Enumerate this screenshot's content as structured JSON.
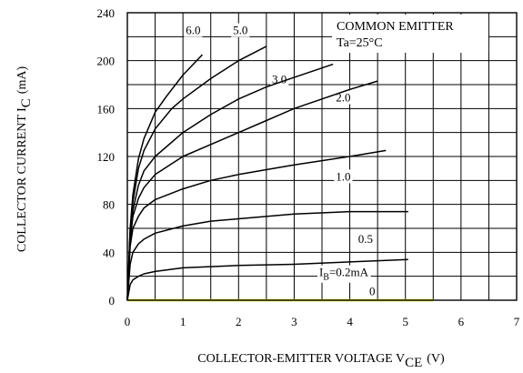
{
  "chart_data": {
    "type": "line",
    "title": "",
    "xlabel": "COLLECTOR-EMITTER VOLTAGE V",
    "xlabel_sub": "CE",
    "xlabel_unit": "(V)",
    "ylabel": "COLLECTOR CURRENT I",
    "ylabel_sub": "C",
    "ylabel_unit": "(mA)",
    "xlim": [
      0,
      7
    ],
    "ylim": [
      0,
      240
    ],
    "xticks": [
      "0",
      "1",
      "2",
      "3",
      "4",
      "5",
      "6",
      "7"
    ],
    "yticks": [
      "0",
      "40",
      "80",
      "120",
      "160",
      "200",
      "240"
    ],
    "grid": true,
    "annotation_lines": [
      "COMMON EMITTER",
      "Ta=25°C"
    ],
    "series": [
      {
        "name": "0",
        "label": "0",
        "color": "#e6e600",
        "x": [
          0,
          5.5
        ],
        "y": [
          0,
          0
        ]
      },
      {
        "name": "0.2",
        "label": "I",
        "label_sub": "B",
        "label_suffix": "=0.2mA",
        "color": "#000000",
        "x": [
          0,
          0.05,
          0.1,
          0.2,
          0.3,
          0.5,
          1,
          2,
          3,
          4,
          5.05
        ],
        "y": [
          0,
          13,
          17,
          20,
          22,
          24,
          27,
          29,
          30,
          32,
          34
        ]
      },
      {
        "name": "0.5",
        "label": "0.5",
        "color": "#000000",
        "x": [
          0,
          0.05,
          0.1,
          0.2,
          0.3,
          0.5,
          1,
          1.5,
          2,
          3,
          4,
          5.05
        ],
        "y": [
          0,
          30,
          40,
          47,
          51,
          56,
          62,
          66,
          68,
          72,
          74,
          74
        ]
      },
      {
        "name": "1.0",
        "label": "1.0",
        "color": "#000000",
        "x": [
          0,
          0.05,
          0.1,
          0.2,
          0.3,
          0.5,
          1,
          1.5,
          2,
          3,
          4,
          4.65
        ],
        "y": [
          0,
          45,
          60,
          70,
          77,
          84,
          93,
          100,
          105,
          113,
          120,
          125
        ]
      },
      {
        "name": "2.0",
        "label": "2.0",
        "color": "#000000",
        "x": [
          0,
          0.05,
          0.1,
          0.2,
          0.3,
          0.5,
          1,
          1.5,
          2,
          2.5,
          3,
          3.5,
          4,
          4.5
        ],
        "y": [
          0,
          50,
          70,
          85,
          94,
          105,
          120,
          130,
          140,
          150,
          160,
          168,
          176,
          183
        ]
      },
      {
        "name": "3.0",
        "label": "3.0",
        "color": "#000000",
        "x": [
          0,
          0.05,
          0.1,
          0.2,
          0.3,
          0.5,
          1,
          1.5,
          2,
          2.5,
          3,
          3.7
        ],
        "y": [
          0,
          52,
          75,
          96,
          108,
          120,
          140,
          155,
          168,
          178,
          186,
          197
        ]
      },
      {
        "name": "5.0",
        "label": "5.0",
        "color": "#000000",
        "x": [
          0,
          0.05,
          0.1,
          0.2,
          0.3,
          0.5,
          0.8,
          1,
          1.5,
          2,
          2.5
        ],
        "y": [
          0,
          58,
          82,
          110,
          125,
          143,
          160,
          168,
          185,
          200,
          212
        ]
      },
      {
        "name": "6.0",
        "label": "6.0",
        "color": "#000000",
        "x": [
          0,
          0.05,
          0.1,
          0.2,
          0.3,
          0.5,
          0.7,
          1,
          1.35
        ],
        "y": [
          0,
          60,
          88,
          118,
          135,
          157,
          170,
          188,
          205
        ]
      }
    ]
  }
}
